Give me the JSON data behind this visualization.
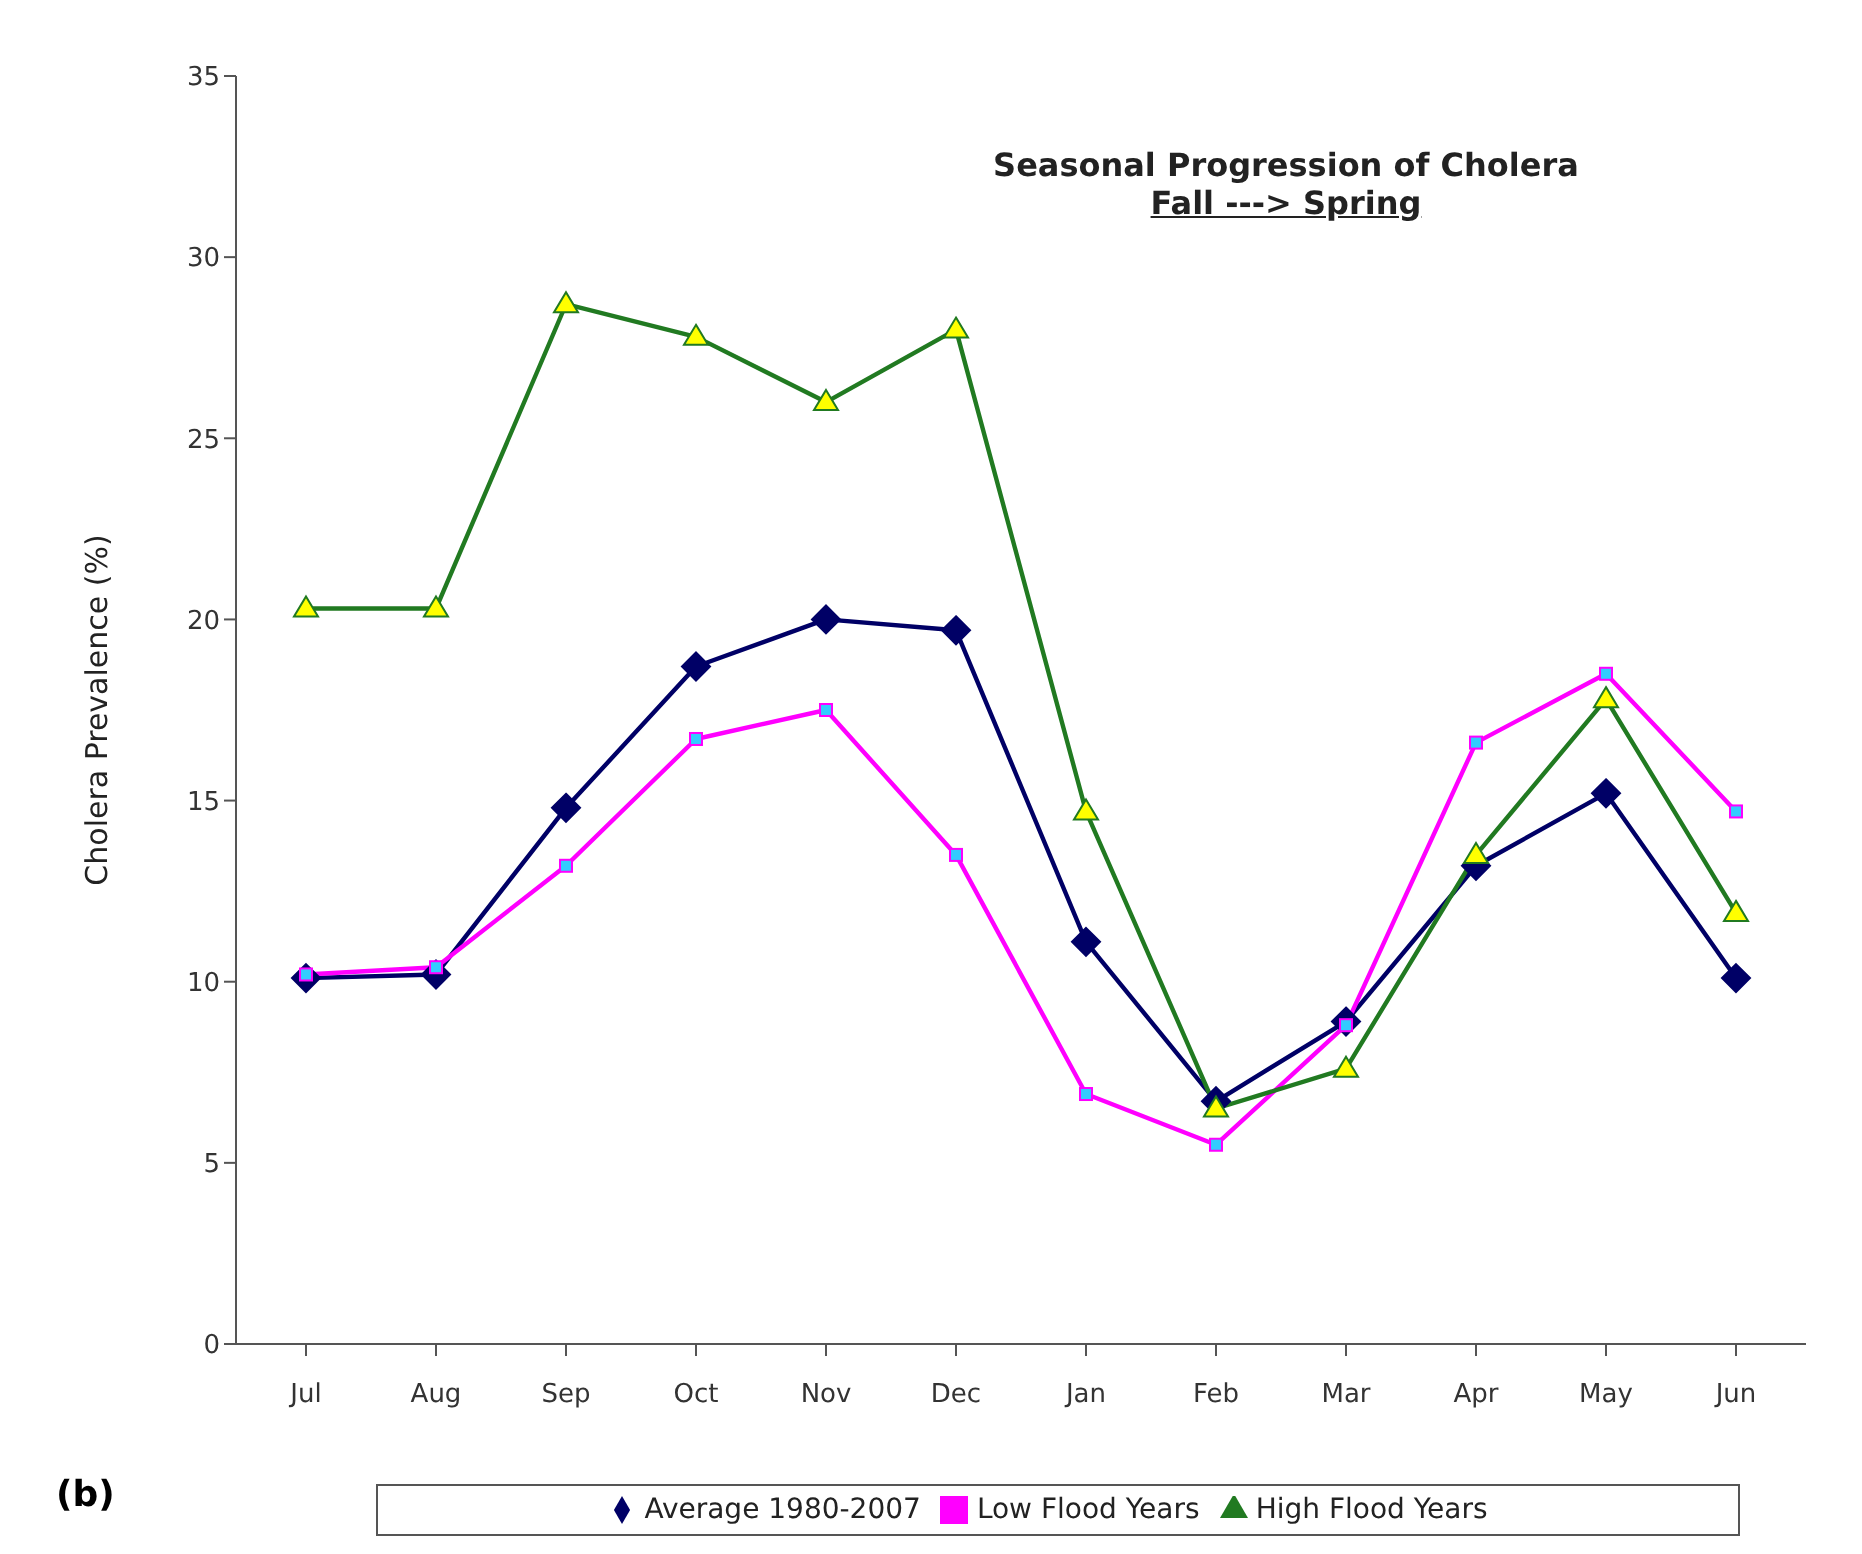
{
  "chart_data": {
    "type": "line",
    "title": "Seasonal Progression of Cholera",
    "subtitle": "Fall ---> Spring",
    "ylabel": "Cholera Prevalence (%)",
    "annotations": [
      "(b)"
    ],
    "categories": [
      "Jul",
      "Aug",
      "Sep",
      "Oct",
      "Nov",
      "Dec",
      "Jan",
      "Feb",
      "Mar",
      "Apr",
      "May",
      "Jun"
    ],
    "series": [
      {
        "name": "Average 1980-2007",
        "color": "#000066",
        "marker": "diamond",
        "values": [
          10.1,
          10.2,
          14.8,
          18.7,
          20.0,
          19.7,
          11.1,
          6.7,
          8.9,
          13.2,
          15.2,
          10.1
        ]
      },
      {
        "name": "Low Flood Years",
        "color": "#ff00ff",
        "marker": "square",
        "values": [
          10.2,
          10.4,
          13.2,
          16.7,
          17.5,
          13.5,
          6.9,
          5.5,
          8.8,
          16.6,
          18.5,
          14.7
        ]
      },
      {
        "name": "High Flood Years",
        "color": "#217a21",
        "marker": "triangle",
        "values": [
          20.3,
          20.3,
          28.7,
          27.8,
          26.0,
          28.0,
          14.7,
          6.5,
          7.6,
          13.5,
          17.8,
          11.9
        ]
      }
    ],
    "ylim": [
      0,
      35
    ],
    "yticks": [
      0,
      5,
      10,
      15,
      20,
      25,
      30,
      35
    ],
    "grid": false,
    "legend": "bottom",
    "line_style": "solid"
  }
}
